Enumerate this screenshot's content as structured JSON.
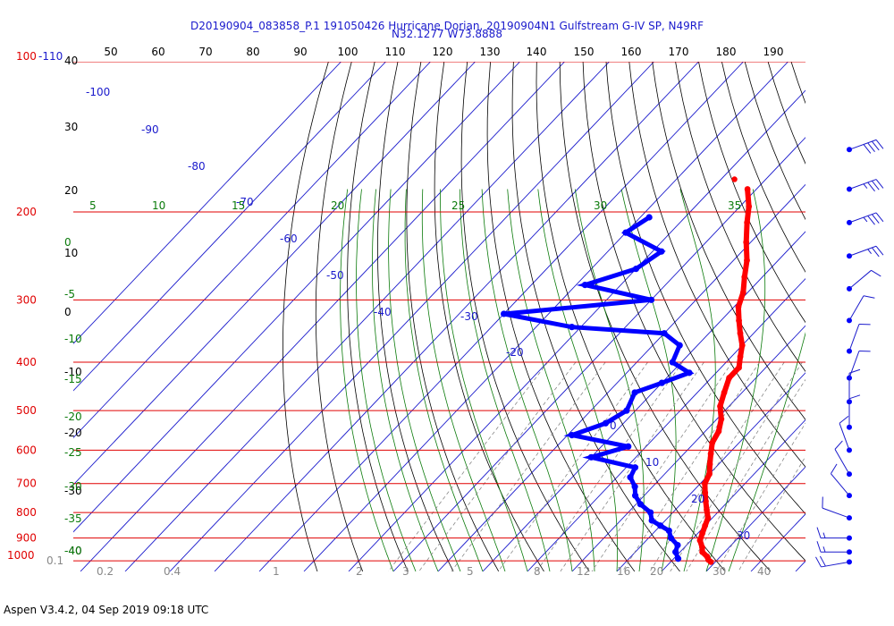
{
  "chart_data": {
    "type": "skew-t",
    "title_line1": "D20190904_083858_P.1 191050426 Hurricane Dorian, 20190904N1 Gulfstream G-IV SP, N49RF",
    "title_line2": "N32.1277 W73.8888",
    "footer": "Aspen V3.4.2, 04 Sep 2019  09:18 UTC",
    "pressure_labels": [
      {
        "p": 100,
        "label": "100"
      },
      {
        "p": 200,
        "label": "200"
      },
      {
        "p": 300,
        "label": "300"
      },
      {
        "p": 400,
        "label": "400"
      },
      {
        "p": 500,
        "label": "500"
      },
      {
        "p": 600,
        "label": "600"
      },
      {
        "p": 700,
        "label": "700"
      },
      {
        "p": 800,
        "label": "800"
      },
      {
        "p": 900,
        "label": "900"
      },
      {
        "p": 1000,
        "label": "1000"
      }
    ],
    "top_left_label": "-110",
    "isotherm_top_labels": [
      "50",
      "60",
      "70",
      "80",
      "90",
      "100",
      "110",
      "120",
      "130",
      "140",
      "150",
      "160",
      "170",
      "180",
      "190"
    ],
    "left_temperature_labels": [
      "40",
      "30",
      "20",
      "10",
      "0",
      "-10",
      "-20",
      "-30",
      "-40"
    ],
    "theta_labels": [
      "-100",
      "-90",
      "-80",
      "-70",
      "-60",
      "-50",
      "-40",
      "-30",
      "-20",
      "0",
      "10",
      "20",
      "30"
    ],
    "theta_e_labels": [
      "5",
      "10",
      "15",
      "20",
      "25",
      "30",
      "35"
    ],
    "mixing_ratio_labels_left": [
      "0",
      "-5",
      "-10",
      "-15",
      "-20",
      "-25",
      "-30",
      "-35",
      "-40"
    ],
    "bottom_labels": [
      "0.1",
      "0.2",
      "0.4",
      "1",
      "2",
      "3",
      "5",
      "8",
      "12",
      "16",
      "20",
      "30",
      "40"
    ],
    "temperature_profile": [
      [
        180,
        -42
      ],
      [
        195,
        -38
      ],
      [
        210,
        -35
      ],
      [
        230,
        -31
      ],
      [
        250,
        -27
      ],
      [
        270,
        -24
      ],
      [
        290,
        -21
      ],
      [
        310,
        -19
      ],
      [
        330,
        -16
      ],
      [
        350,
        -13
      ],
      [
        370,
        -10
      ],
      [
        390,
        -8
      ],
      [
        410,
        -6
      ],
      [
        430,
        -6
      ],
      [
        460,
        -4
      ],
      [
        490,
        -2
      ],
      [
        520,
        1
      ],
      [
        550,
        3
      ],
      [
        580,
        4
      ],
      [
        610,
        6
      ],
      [
        640,
        8
      ],
      [
        670,
        10
      ],
      [
        700,
        11
      ],
      [
        730,
        13
      ],
      [
        760,
        15
      ],
      [
        790,
        17
      ],
      [
        820,
        19
      ],
      [
        850,
        20
      ],
      [
        880,
        21
      ],
      [
        910,
        22
      ],
      [
        940,
        24
      ],
      [
        960,
        25
      ],
      [
        980,
        27
      ],
      [
        995,
        28
      ],
      [
        1005,
        29
      ]
    ],
    "dewpoint_profile": [
      [
        205,
        -58
      ],
      [
        220,
        -60
      ],
      [
        240,
        -48
      ],
      [
        260,
        -50
      ],
      [
        280,
        -58
      ],
      [
        300,
        -40
      ],
      [
        320,
        -70
      ],
      [
        340,
        -52
      ],
      [
        350,
        -30
      ],
      [
        370,
        -24
      ],
      [
        400,
        -22
      ],
      [
        420,
        -16
      ],
      [
        440,
        -20
      ],
      [
        460,
        -24
      ],
      [
        500,
        -22
      ],
      [
        530,
        -24
      ],
      [
        560,
        -29
      ],
      [
        590,
        -14
      ],
      [
        620,
        -20
      ],
      [
        650,
        -8
      ],
      [
        680,
        -7
      ],
      [
        710,
        -4
      ],
      [
        740,
        -2
      ],
      [
        770,
        1
      ],
      [
        800,
        5
      ],
      [
        830,
        7
      ],
      [
        850,
        10
      ],
      [
        870,
        13
      ],
      [
        900,
        15
      ],
      [
        930,
        18
      ],
      [
        960,
        19
      ],
      [
        990,
        21
      ]
    ],
    "stray_point": {
      "p": 172,
      "t": -47
    },
    "wind_barbs": [
      {
        "p": 150,
        "speed_kt": 40,
        "dir_deg": 250
      },
      {
        "p": 180,
        "speed_kt": 35,
        "dir_deg": 250
      },
      {
        "p": 210,
        "speed_kt": 35,
        "dir_deg": 250
      },
      {
        "p": 245,
        "speed_kt": 25,
        "dir_deg": 250
      },
      {
        "p": 285,
        "speed_kt": 10,
        "dir_deg": 230
      },
      {
        "p": 330,
        "speed_kt": 10,
        "dir_deg": 210
      },
      {
        "p": 380,
        "speed_kt": 10,
        "dir_deg": 200
      },
      {
        "p": 430,
        "speed_kt": 10,
        "dir_deg": 200
      },
      {
        "p": 480,
        "speed_kt": 10,
        "dir_deg": 180
      },
      {
        "p": 540,
        "speed_kt": 10,
        "dir_deg": 180
      },
      {
        "p": 600,
        "speed_kt": 10,
        "dir_deg": 160
      },
      {
        "p": 670,
        "speed_kt": 10,
        "dir_deg": 150
      },
      {
        "p": 740,
        "speed_kt": 10,
        "dir_deg": 140
      },
      {
        "p": 820,
        "speed_kt": 10,
        "dir_deg": 110
      },
      {
        "p": 900,
        "speed_kt": 15,
        "dir_deg": 90
      },
      {
        "p": 960,
        "speed_kt": 15,
        "dir_deg": 90
      },
      {
        "p": 1005,
        "speed_kt": 20,
        "dir_deg": 80
      }
    ],
    "colors": {
      "isobar": "#e00000",
      "isotherm": "#1a1acc",
      "dry_adiabat": "#000000",
      "moist_adiabat": "#0a7a0a",
      "mixing_ratio": "#888888",
      "temperature": "#ff0000",
      "dewpoint": "#0000ff"
    }
  }
}
